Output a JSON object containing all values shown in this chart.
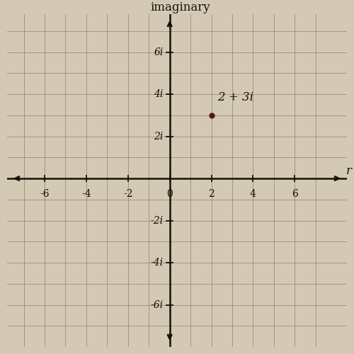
{
  "title": "imaginary",
  "real_axis_label": "r",
  "xlim_data": [
    -7,
    7
  ],
  "ylim_data": [
    -7,
    7
  ],
  "x_ticks": [
    -6,
    -4,
    -2,
    0,
    2,
    4,
    6
  ],
  "y_ticks": [
    -6,
    -4,
    -2,
    2,
    4,
    6
  ],
  "y_tick_labels": [
    "-6i",
    "-4i",
    "-2i",
    "2i",
    "4i",
    "6i"
  ],
  "point_x": 2,
  "point_y": 3,
  "point_label": "2 + 3i",
  "point_color": "#5a1515",
  "point_size": 5,
  "background_color": "#d4c9b5",
  "paper_color": "#e8dece",
  "axis_color": "#1a1008",
  "grid_color": "#5a4a38",
  "tick_fontsize": 10,
  "title_fontsize": 12,
  "point_label_fontsize": 12
}
